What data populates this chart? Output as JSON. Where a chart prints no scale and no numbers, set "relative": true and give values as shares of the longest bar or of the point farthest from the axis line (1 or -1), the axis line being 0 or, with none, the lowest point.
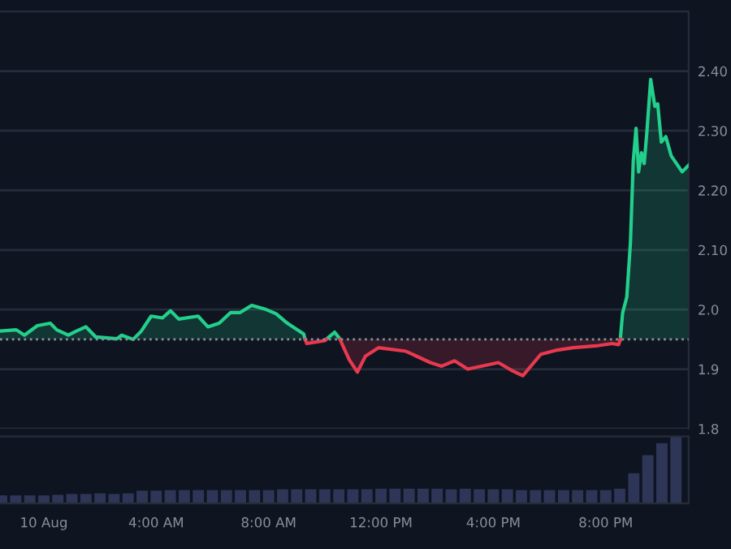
{
  "chart_data": [
    {
      "type": "area",
      "xlim": [
        -1.56,
        22.95
      ],
      "ylim": [
        1.8,
        2.5
      ],
      "yticks": [
        {
          "value": 1.8,
          "label": "1.8"
        },
        {
          "value": 1.9,
          "label": "1.9"
        },
        {
          "value": 2.0,
          "label": "2.0"
        },
        {
          "value": 2.1,
          "label": "2.10"
        },
        {
          "value": 2.2,
          "label": "2.20"
        },
        {
          "value": 2.3,
          "label": "2.30"
        },
        {
          "value": 2.4,
          "label": "2.40"
        }
      ],
      "grid": "y",
      "tick_labels": "y",
      "ref_lines": [
        {
          "axis": "y",
          "value": 1.95,
          "color": "#8a8f9b",
          "line_style": "dotted"
        }
      ],
      "x": [
        -1.56,
        -0.98,
        -0.69,
        -0.23,
        0.23,
        0.46,
        0.87,
        1.16,
        1.5,
        1.85,
        2.6,
        2.77,
        3.18,
        3.47,
        3.82,
        4.22,
        4.51,
        4.8,
        5.49,
        5.84,
        6.24,
        6.65,
        6.99,
        7.4,
        7.86,
        8.27,
        8.67,
        9.25,
        9.3,
        9.36,
        10.0,
        10.05,
        10.35,
        10.55,
        10.58,
        10.87,
        11.16,
        11.45,
        11.91,
        12.89,
        13.76,
        14.16,
        14.62,
        15.09,
        16.18,
        16.65,
        17.05,
        17.69,
        18.27,
        18.84,
        19.65,
        20.23,
        20.46,
        20.52,
        20.6,
        20.75,
        20.88,
        20.98,
        21.08,
        21.17,
        21.27,
        21.37,
        21.46,
        21.6,
        21.75,
        21.85,
        21.98,
        22.14,
        22.33,
        22.72,
        22.95
      ],
      "series": [
        {
          "color": "#22d08c",
          "values": [
            1.964,
            1.966,
            1.957,
            1.973,
            1.977,
            1.966,
            1.957,
            1.964,
            1.971,
            1.954,
            1.951,
            1.957,
            1.95,
            1.964,
            1.989,
            1.986,
            1.998,
            1.984,
            1.989,
            1.971,
            1.977,
            1.995,
            1.995,
            2.007,
            2.001,
            1.993,
            1.977,
            1.959,
            1.95,
            null,
            null,
            1.95,
            1.962,
            1.95,
            null,
            null,
            null,
            null,
            null,
            null,
            null,
            null,
            null,
            null,
            null,
            null,
            null,
            null,
            null,
            null,
            null,
            null,
            null,
            1.95,
            1.994,
            2.021,
            2.112,
            2.249,
            2.304,
            2.231,
            2.263,
            2.245,
            2.295,
            2.386,
            2.341,
            2.345,
            2.281,
            2.29,
            2.258,
            2.231,
            2.242
          ]
        },
        {
          "color": "#e8394f",
          "values": [
            null,
            null,
            null,
            null,
            null,
            null,
            null,
            null,
            null,
            null,
            null,
            null,
            null,
            null,
            null,
            null,
            null,
            null,
            null,
            null,
            null,
            null,
            null,
            null,
            null,
            null,
            null,
            null,
            1.95,
            1.943,
            1.948,
            1.95,
            null,
            1.95,
            1.946,
            1.916,
            1.895,
            1.922,
            1.936,
            1.93,
            1.911,
            1.905,
            1.914,
            1.9,
            1.911,
            1.898,
            1.889,
            1.925,
            1.932,
            1.936,
            1.939,
            1.943,
            1.941,
            1.95,
            null,
            null,
            null,
            null,
            null,
            null,
            null,
            null,
            null,
            null,
            null,
            null,
            null,
            null,
            null,
            null,
            null
          ]
        }
      ]
    },
    {
      "type": "bar",
      "relative": true,
      "xlim": [
        -1.56,
        22.95
      ],
      "xticks": [
        {
          "value": 0,
          "label": "10 Aug"
        },
        {
          "value": 4,
          "label": "4:00 AM"
        },
        {
          "value": 8,
          "label": "8:00 AM"
        },
        {
          "value": 12,
          "label": "12:00 PM"
        },
        {
          "value": 16,
          "label": "4:00 PM"
        },
        {
          "value": 20,
          "label": "8:00 PM"
        }
      ],
      "tick_labels": "x",
      "x": [
        -1.5,
        -1,
        -0.5,
        0,
        0.5,
        1,
        1.5,
        2,
        2.5,
        3,
        3.5,
        4,
        4.5,
        5,
        5.5,
        6,
        6.5,
        7,
        7.5,
        8,
        8.5,
        9,
        9.5,
        10,
        10.5,
        11,
        11.5,
        12,
        12.5,
        13,
        13.5,
        14,
        14.5,
        15,
        15.5,
        16,
        16.5,
        17,
        17.5,
        18,
        18.5,
        19,
        19.5,
        20,
        20.5,
        21,
        21.5,
        22,
        22.5
      ],
      "series": [
        {
          "color": "#2e3658",
          "values": [
            0.12,
            0.12,
            0.12,
            0.12,
            0.13,
            0.14,
            0.14,
            0.15,
            0.14,
            0.15,
            0.19,
            0.19,
            0.2,
            0.2,
            0.2,
            0.2,
            0.2,
            0.2,
            0.2,
            0.2,
            0.21,
            0.21,
            0.21,
            0.21,
            0.21,
            0.21,
            0.21,
            0.22,
            0.22,
            0.22,
            0.22,
            0.22,
            0.21,
            0.22,
            0.21,
            0.21,
            0.21,
            0.2,
            0.2,
            0.2,
            0.2,
            0.2,
            0.2,
            0.2,
            0.22,
            0.45,
            0.72,
            0.9,
            1.0
          ]
        }
      ]
    }
  ]
}
